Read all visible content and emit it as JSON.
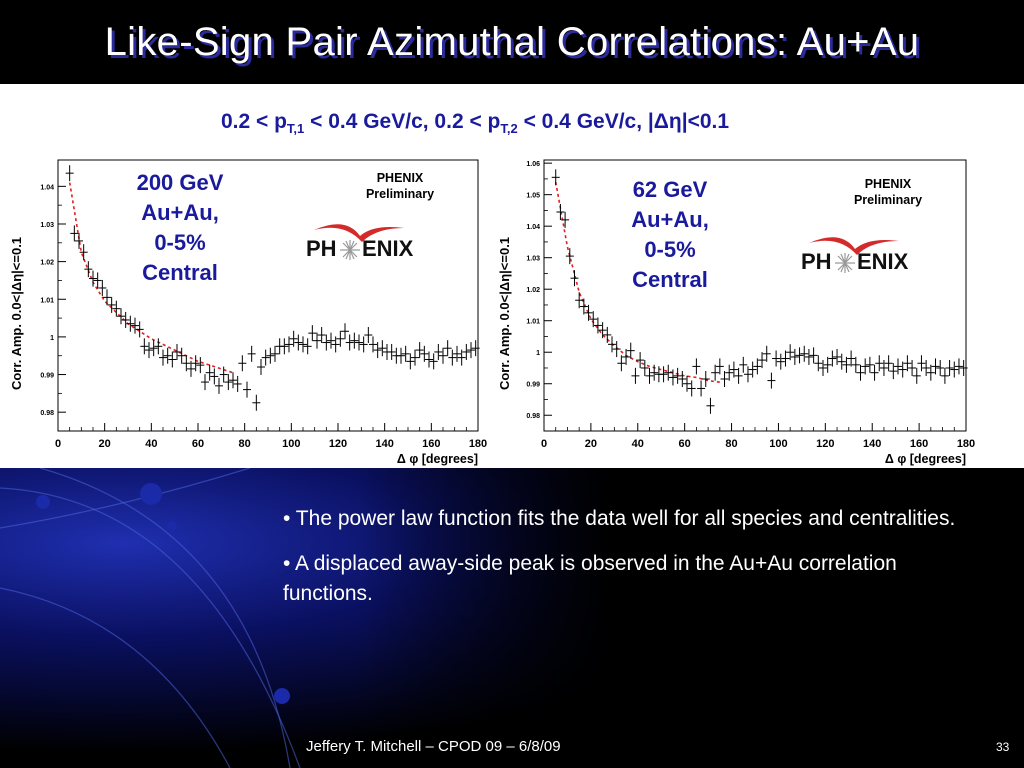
{
  "slide": {
    "title": "Like-Sign Pair Azimuthal Correlations: Au+Au",
    "subtitle": {
      "t1": "0.2 < p",
      "s1": "T,1",
      "t2": " < 0.4 GeV/c, 0.2 < p",
      "s2": "T,2",
      "t3": " < 0.4 GeV/c, |Δη|<0.1"
    },
    "bullets": [
      "• The power law function fits the data well for all species and centralities.",
      "• A displaced away-side peak is observed in the Au+Au correlation functions."
    ],
    "footer": "Jeffery T. Mitchell – CPOD 09 – 6/8/09",
    "page_number": "33",
    "logo_text": "PH ENIX",
    "colors": {
      "title_shadow": "#2a2a9a",
      "label": "#1a1a9c",
      "fit": "#e02020",
      "background": "#000000"
    }
  },
  "chart_data": [
    {
      "type": "scatter",
      "energy_label": [
        "200 GeV",
        "Au+Au,",
        "0-5%",
        "Central"
      ],
      "preliminary": [
        "PHENIX",
        "Preliminary"
      ],
      "xlabel": "Δ φ [degrees]",
      "ylabel": "Corr. Amp. 0.0<|Δη|<=0.1",
      "xlim": [
        0,
        180
      ],
      "ylim": [
        0.975,
        1.047
      ],
      "xticks": [
        0,
        20,
        40,
        60,
        80,
        100,
        120,
        140,
        160,
        180
      ],
      "xtick_labels": [
        "0",
        "20",
        "40",
        "60",
        "80",
        "100",
        "120",
        "140",
        "160",
        "180"
      ],
      "yticks": [
        0.98,
        0.99,
        1,
        1.01,
        1.02,
        1.03,
        1.04
      ],
      "ytick_labels": [
        "0.98",
        "0.99",
        "1",
        "1.01",
        "1.02",
        "1.03",
        "1.04"
      ],
      "series": [
        {
          "x": [
            5,
            7,
            9,
            11,
            13,
            15,
            17,
            19,
            21,
            23,
            25,
            27,
            29,
            31,
            33,
            35,
            37,
            39,
            41,
            43,
            45,
            47,
            49,
            51,
            53,
            55,
            57,
            59,
            61,
            63,
            65,
            67,
            69,
            71,
            73,
            75,
            77,
            79,
            81,
            83,
            85,
            87,
            89,
            91,
            93,
            95,
            97,
            99,
            101,
            103,
            105,
            107,
            109,
            111,
            113,
            115,
            117,
            119,
            121,
            123,
            125,
            127,
            129,
            131,
            133,
            135,
            137,
            139,
            141,
            143,
            145,
            147,
            149,
            151,
            153,
            155,
            157,
            159,
            161,
            163,
            165,
            167,
            169,
            171,
            173,
            175,
            177,
            179
          ],
          "y": [
            1.0435,
            1.0275,
            1.0255,
            1.0225,
            1.018,
            1.0155,
            1.015,
            1.013,
            1.0105,
            1.0085,
            1.0075,
            1.0055,
            1.0045,
            1.0035,
            1.003,
            1.002,
            0.9975,
            0.9965,
            0.997,
            0.9975,
            0.9945,
            0.995,
            0.994,
            0.996,
            0.995,
            0.993,
            0.9915,
            0.993,
            0.9925,
            0.988,
            0.9905,
            0.9895,
            0.987,
            0.99,
            0.988,
            0.9885,
            0.9875,
            0.993,
            0.986,
            0.9955,
            0.9825,
            0.992,
            0.9945,
            0.995,
            0.9955,
            0.9975,
            0.9975,
            0.998,
            0.9995,
            0.9985,
            0.998,
            0.9975,
            1.001,
            0.999,
            1.0005,
            0.9985,
            0.999,
            0.998,
            0.9995,
            1.0015,
            0.9985,
            0.999,
            0.9985,
            0.998,
            1.0005,
            0.998,
            0.9965,
            0.997,
            0.996,
            0.996,
            0.995,
            0.995,
            0.9955,
            0.9935,
            0.9945,
            0.9965,
            0.9955,
            0.994,
            0.9935,
            0.996,
            0.995,
            0.997,
            0.9945,
            0.9955,
            0.9945,
            0.996,
            0.9965,
            0.997
          ]
        }
      ],
      "fit_x": [
        5,
        10,
        15,
        20,
        25,
        30,
        35,
        40,
        45,
        50,
        55,
        60,
        65,
        70,
        75
      ],
      "fit_y": [
        1.041,
        1.0225,
        1.0145,
        1.0095,
        1.0065,
        1.0035,
        1.0015,
        0.9995,
        0.998,
        0.9965,
        0.995,
        0.9935,
        0.9925,
        0.9915,
        0.9905
      ]
    },
    {
      "type": "scatter",
      "energy_label": [
        "62 GeV",
        "Au+Au,",
        "0-5%",
        "Central"
      ],
      "preliminary": [
        "PHENIX",
        "Preliminary"
      ],
      "xlabel": "Δ φ [degrees]",
      "ylabel": "Corr. Amp. 0.0<|Δη|<=0.1",
      "xlim": [
        0,
        180
      ],
      "ylim": [
        0.975,
        1.061
      ],
      "xticks": [
        0,
        20,
        40,
        60,
        80,
        100,
        120,
        140,
        160,
        180
      ],
      "xtick_labels": [
        "0",
        "20",
        "40",
        "60",
        "80",
        "100",
        "120",
        "140",
        "160",
        "180"
      ],
      "yticks": [
        0.98,
        0.99,
        1,
        1.01,
        1.02,
        1.03,
        1.04,
        1.05,
        1.06
      ],
      "ytick_labels": [
        "0.98",
        "0.99",
        "1",
        "1.01",
        "1.02",
        "1.03",
        "1.04",
        "1.05",
        "1.06"
      ],
      "series": [
        {
          "x": [
            5,
            7,
            9,
            11,
            13,
            15,
            17,
            19,
            21,
            23,
            25,
            27,
            29,
            31,
            33,
            35,
            37,
            39,
            41,
            43,
            45,
            47,
            49,
            51,
            53,
            55,
            57,
            59,
            61,
            63,
            65,
            67,
            69,
            71,
            73,
            75,
            77,
            79,
            81,
            83,
            85,
            87,
            89,
            91,
            93,
            95,
            97,
            99,
            101,
            103,
            105,
            107,
            109,
            111,
            113,
            115,
            117,
            119,
            121,
            123,
            125,
            127,
            129,
            131,
            133,
            135,
            137,
            139,
            141,
            143,
            145,
            147,
            149,
            151,
            153,
            155,
            157,
            159,
            161,
            163,
            165,
            167,
            169,
            171,
            173,
            175,
            177,
            179
          ],
          "y": [
            1.0555,
            1.0445,
            1.042,
            1.0305,
            1.0235,
            1.0165,
            1.0145,
            1.0125,
            1.0105,
            1.0085,
            1.007,
            1.0055,
            1.0025,
            1.001,
            0.9965,
            0.9985,
            1.0005,
            0.9925,
            0.9975,
            0.995,
            0.9925,
            0.9935,
            0.993,
            0.993,
            0.9935,
            0.992,
            0.9925,
            0.9915,
            0.99,
            0.9885,
            0.9955,
            0.9885,
            0.9915,
            0.983,
            0.9935,
            0.9955,
            0.9915,
            0.9935,
            0.9945,
            0.9925,
            0.996,
            0.993,
            0.9945,
            0.9955,
            0.9975,
            0.9995,
            0.991,
            0.998,
            0.997,
            0.998,
            1.0,
            0.9985,
            0.999,
            0.9995,
            0.9985,
            0.999,
            0.9965,
            0.995,
            0.996,
            0.998,
            0.9985,
            0.997,
            0.996,
            0.998,
            0.996,
            0.9935,
            0.9955,
            0.996,
            0.9935,
            0.9965,
            0.995,
            0.9965,
            0.994,
            0.9955,
            0.9945,
            0.9965,
            0.995,
            0.9925,
            0.9965,
            0.995,
            0.9935,
            0.9955,
            0.995,
            0.9925,
            0.995,
            0.9945,
            0.9955,
            0.995
          ]
        }
      ],
      "fit_x": [
        5,
        10,
        15,
        20,
        25,
        30,
        35,
        40,
        45,
        50,
        55,
        60,
        65,
        70,
        75
      ],
      "fit_y": [
        1.054,
        1.0335,
        1.019,
        1.0105,
        1.0055,
        1.002,
        0.999,
        0.997,
        0.9955,
        0.9945,
        0.9935,
        0.9925,
        0.992,
        0.991,
        0.9905
      ]
    }
  ]
}
